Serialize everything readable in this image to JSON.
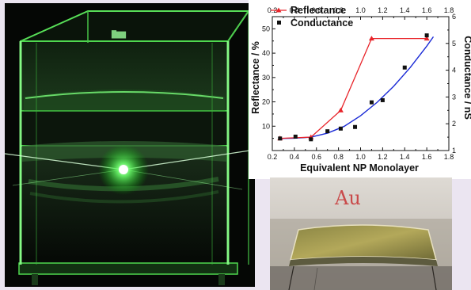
{
  "figure": {
    "left_photo": {
      "label": ""
    },
    "right_photo": {
      "handwritten_label": "Au"
    }
  },
  "chart_data": {
    "type": "line",
    "xlabel": "Equivalent NP Monolayer",
    "ylabel_left": "Reflectance / %",
    "ylabel_right": "Conductance  / nS",
    "xlim": [
      0.2,
      1.8
    ],
    "ylim_left": [
      0,
      55
    ],
    "ylim_right": [
      1,
      6
    ],
    "x_ticks": [
      "0.2",
      "0.4",
      "0.6",
      "0.8",
      "1.0",
      "1.2",
      "1.4",
      "1.6",
      "1.8"
    ],
    "y_left_ticks": [
      "10",
      "20",
      "30",
      "40",
      "50"
    ],
    "y_right_ticks": [
      "1",
      "2",
      "3",
      "4",
      "5",
      "6"
    ],
    "legend_position": "top-left",
    "series": [
      {
        "name": "Reflectance",
        "axis": "left",
        "color": "#e8242a",
        "marker": "triangle",
        "x": [
          0.27,
          0.55,
          0.82,
          1.1,
          1.6
        ],
        "y": [
          5,
          5.5,
          16.5,
          46,
          46
        ]
      },
      {
        "name": "Conductance",
        "axis": "right",
        "color": "#111111",
        "marker": "square",
        "x": [
          0.27,
          0.41,
          0.55,
          0.7,
          0.82,
          0.95,
          1.1,
          1.2,
          1.4,
          1.6
        ],
        "y": [
          1.45,
          1.52,
          1.42,
          1.72,
          1.82,
          1.88,
          2.8,
          2.88,
          4.1,
          5.3
        ]
      }
    ],
    "fit_curve": {
      "axis": "right",
      "color": "#1a2ad6",
      "x": [
        0.27,
        0.4,
        0.55,
        0.7,
        0.85,
        1.0,
        1.15,
        1.3,
        1.45,
        1.6,
        1.66
      ],
      "y": [
        1.45,
        1.46,
        1.5,
        1.65,
        1.9,
        2.3,
        2.8,
        3.4,
        4.1,
        4.9,
        5.25
      ]
    }
  }
}
